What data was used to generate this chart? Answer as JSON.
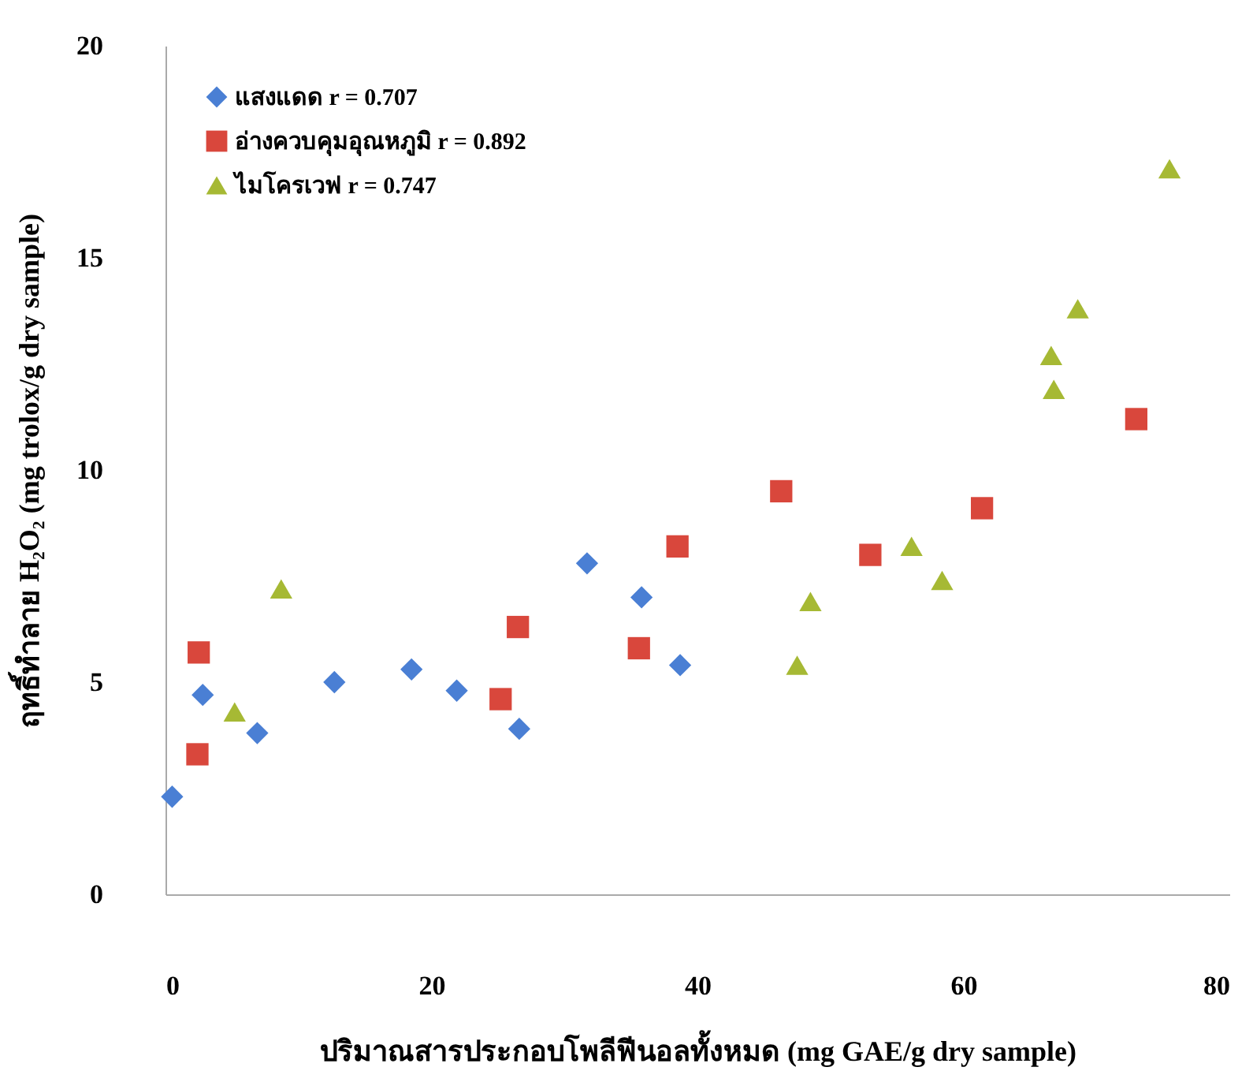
{
  "chart_data": {
    "type": "scatter",
    "xlabel": "ปริมาณสารประกอบโพลีฟีนอลทั้งหมด (mg GAE/g dry sample)",
    "ylabel": "ฤทธิ์ทำลาย H₂O₂ (mg trolox/g dry sample)",
    "xlim": [
      0,
      80
    ],
    "xticks": [
      0,
      20,
      40,
      60,
      80
    ],
    "ylim": [
      0,
      20
    ],
    "yticks": [
      0,
      5,
      10,
      15,
      20
    ],
    "grid": false,
    "legend": "top left",
    "series": [
      {
        "name": "แสงแดด r = 0.707",
        "color": "#4a7fd4",
        "marker": "diamond",
        "x": [
          0.5,
          2.8,
          6.9,
          12.7,
          18.5,
          21.9,
          26.6,
          31.7,
          35.8,
          38.7
        ],
        "values": [
          2.3,
          4.7,
          3.8,
          5.0,
          5.3,
          4.8,
          3.9,
          7.8,
          7.0,
          5.4
        ]
      },
      {
        "name": "อ่างควบคุมอุณหภูมิ r = 0.892",
        "color": "#d9473c",
        "marker": "square",
        "x": [
          2.4,
          2.5,
          25.2,
          26.5,
          35.6,
          38.5,
          46.3,
          53.0,
          61.4,
          73.0
        ],
        "values": [
          3.3,
          5.7,
          4.6,
          6.3,
          5.8,
          8.2,
          9.5,
          8.0,
          9.1,
          11.2
        ]
      },
      {
        "name": "ไมโครเวฟ r = 0.747",
        "color": "#a6b934",
        "marker": "triangle",
        "x": [
          5.2,
          8.7,
          47.5,
          48.5,
          56.1,
          58.4,
          66.6,
          66.8,
          68.6,
          75.5
        ],
        "values": [
          4.3,
          7.2,
          5.4,
          6.9,
          8.2,
          7.4,
          12.7,
          11.9,
          13.8,
          17.1
        ]
      }
    ]
  }
}
